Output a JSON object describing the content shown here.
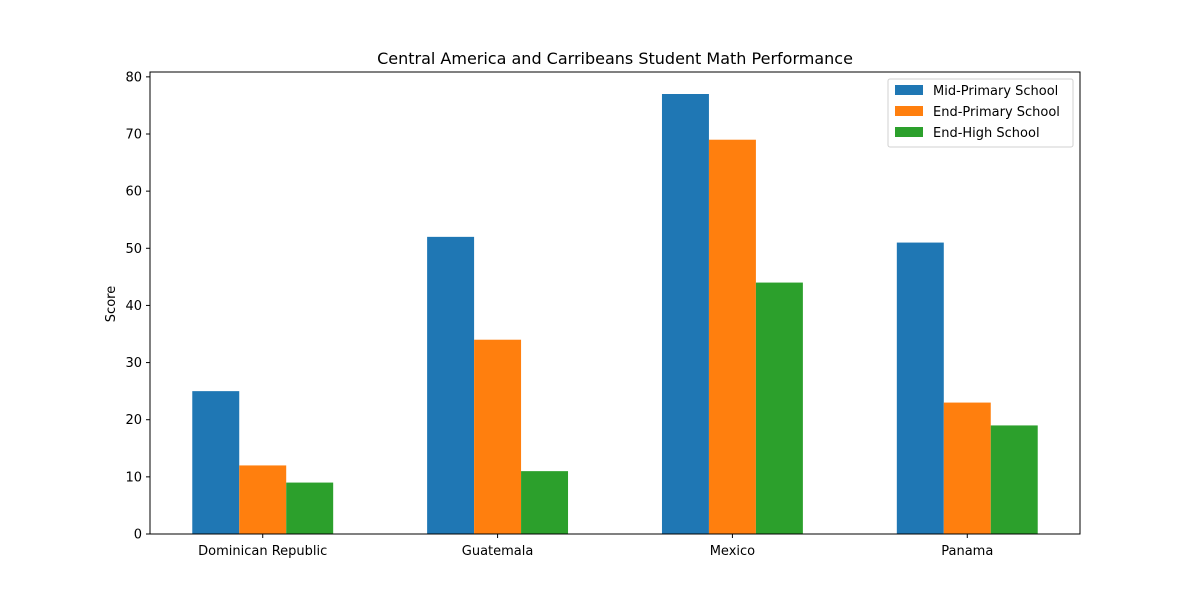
{
  "chart_data": {
    "type": "bar",
    "title": "Central America and Carribeans Student Math Performance",
    "xlabel": "",
    "ylabel": "Score",
    "categories": [
      "Dominican Republic",
      "Guatemala",
      "Mexico",
      "Panama"
    ],
    "series": [
      {
        "name": "Mid-Primary School",
        "values": [
          25,
          52,
          77,
          51
        ],
        "color": "#1f77b4"
      },
      {
        "name": "End-Primary School",
        "values": [
          12,
          34,
          69,
          23
        ],
        "color": "#ff7f0e"
      },
      {
        "name": "End-High School",
        "values": [
          9,
          11,
          44,
          19
        ],
        "color": "#2ca02c"
      }
    ],
    "ylim": [
      0,
      80.85
    ],
    "yticks": [
      0,
      10,
      20,
      30,
      40,
      50,
      60,
      70,
      80
    ],
    "legend": "top-right",
    "grid": false
  }
}
